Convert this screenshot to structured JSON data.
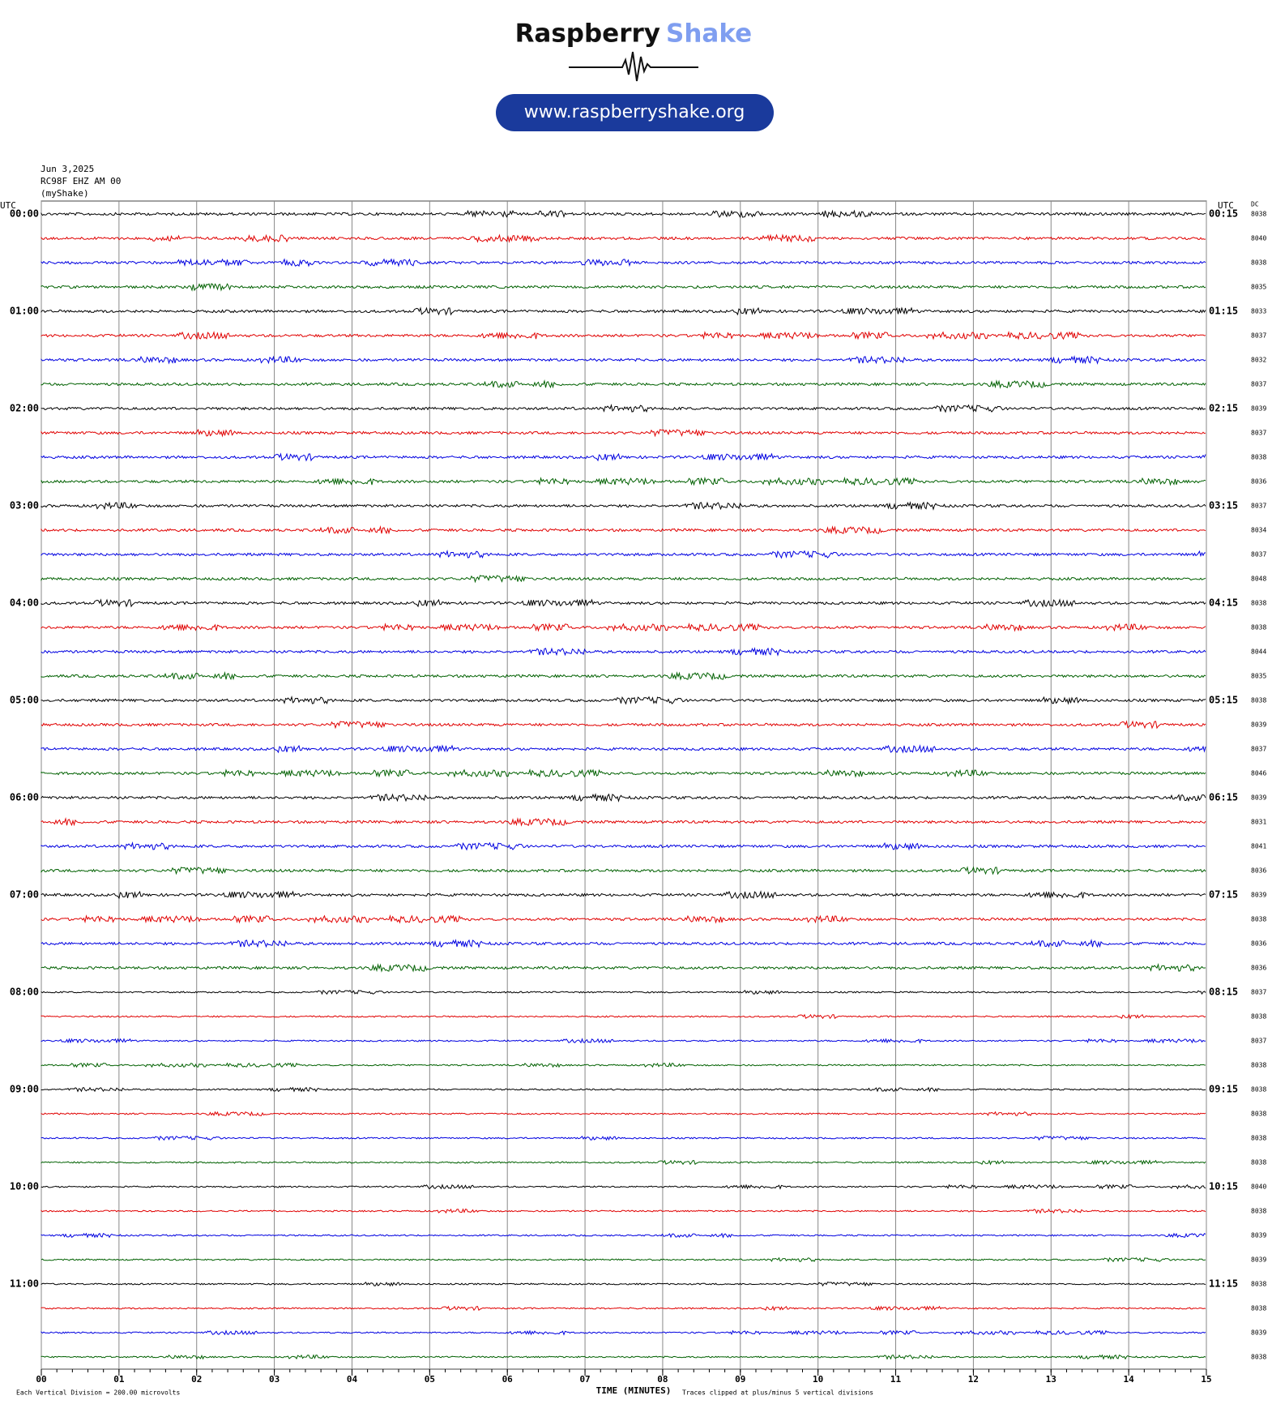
{
  "header": {
    "brand_first": "Raspberry",
    "brand_second": "Shake",
    "url": "www.raspberryshake.org"
  },
  "chart_data": {
    "type": "helicorder",
    "date": "Jun 3,2025",
    "station": "RC98F EHZ AM 00",
    "network": "(myShake)",
    "left_axis_label": "UTC",
    "right_axis_label": "UTC",
    "dc_label": "DC",
    "colors": [
      "#000000",
      "#e00000",
      "#0000e0",
      "#006000"
    ],
    "left_labels": [
      "00:00",
      null,
      null,
      null,
      "01:00",
      null,
      null,
      null,
      "02:00",
      null,
      null,
      null,
      "03:00",
      null,
      null,
      null,
      "04:00",
      null,
      null,
      null,
      "05:00",
      null,
      null,
      null,
      "06:00",
      null,
      null,
      null,
      "07:00",
      null,
      null,
      null,
      "08:00",
      null,
      null,
      null,
      "09:00",
      null,
      null,
      null,
      "10:00",
      null,
      null,
      null,
      "11:00",
      null,
      null,
      null
    ],
    "right_labels": [
      "00:15",
      null,
      null,
      null,
      "01:15",
      null,
      null,
      null,
      "02:15",
      null,
      null,
      null,
      "03:15",
      null,
      null,
      null,
      "04:15",
      null,
      null,
      null,
      "05:15",
      null,
      null,
      null,
      "06:15",
      null,
      null,
      null,
      "07:15",
      null,
      null,
      null,
      "08:15",
      null,
      null,
      null,
      "09:15",
      null,
      null,
      null,
      "10:15",
      null,
      null,
      null,
      "11:15",
      null,
      null,
      null
    ],
    "dc_values": [
      "8038",
      "8040",
      "8038",
      "8035",
      "8033",
      "8037",
      "8032",
      "8037",
      "8039",
      "8037",
      "8038",
      "8036",
      "8037",
      "8034",
      "8037",
      "8048",
      "8038",
      "8038",
      "8044",
      "8035",
      "8038",
      "8039",
      "8037",
      "8046",
      "8039",
      "8031",
      "8041",
      "8036",
      "8039",
      "8038",
      "8036",
      "8036",
      "8037",
      "8038",
      "8037",
      "8038",
      "8038",
      "8038",
      "8038",
      "8038",
      "8040",
      "8038",
      "8039",
      "8039",
      "8038",
      "8038",
      "8039",
      "8038"
    ],
    "xlabel": "TIME (MINUTES)",
    "xlim": [
      0,
      15
    ],
    "xticks": [
      {
        "value": 0,
        "label": "00"
      },
      {
        "value": 1,
        "label": "01"
      },
      {
        "value": 2,
        "label": "02"
      },
      {
        "value": 3,
        "label": "03"
      },
      {
        "value": 4,
        "label": "04"
      },
      {
        "value": 5,
        "label": "05"
      },
      {
        "value": 6,
        "label": "06"
      },
      {
        "value": 7,
        "label": "07"
      },
      {
        "value": 8,
        "label": "08"
      },
      {
        "value": 9,
        "label": "09"
      },
      {
        "value": 10,
        "label": "10"
      },
      {
        "value": 11,
        "label": "11"
      },
      {
        "value": 12,
        "label": "12"
      },
      {
        "value": 13,
        "label": "13"
      },
      {
        "value": 14,
        "label": "14"
      },
      {
        "value": 15,
        "label": "15"
      }
    ],
    "footnote_left": "Each Vertical Division =  200.00 microvolts",
    "footnote_right": "Traces clipped at plus/minus 5 vertical divisions"
  }
}
